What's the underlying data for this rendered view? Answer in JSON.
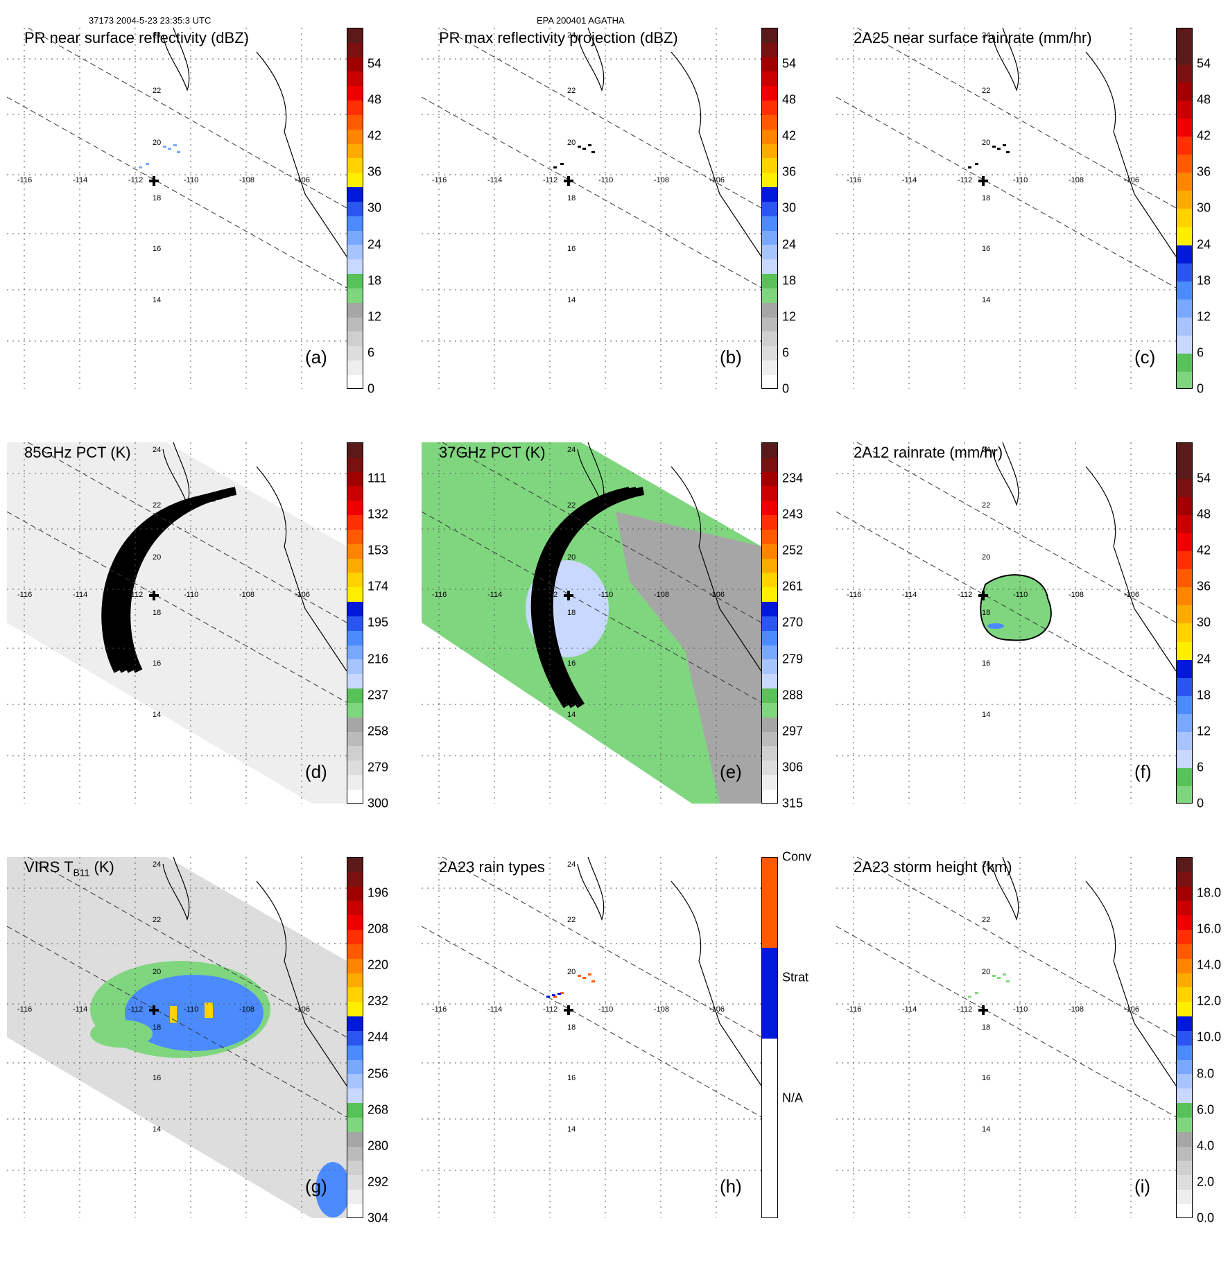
{
  "header": {
    "orbit_time": "37173 2004-5-23 23:35:3 UTC",
    "storm": "EPA 200401 AGATHA"
  },
  "lon_labels": [
    "-116",
    "-114",
    "-112",
    "-110",
    "-108",
    "-106"
  ],
  "lat_labels": [
    "24",
    "22",
    "20",
    "18",
    "16",
    "14"
  ],
  "panels": [
    {
      "id": "a",
      "title": "PR near surface reflectivity (dBZ)",
      "label": "(a)",
      "ticks": [
        "54",
        "48",
        "42",
        "36",
        "30",
        "24",
        "18",
        "12",
        "6",
        "0"
      ],
      "scale": "dbz"
    },
    {
      "id": "b",
      "title": "PR max reflectivity projection (dBZ)",
      "label": "(b)",
      "ticks": [
        "54",
        "48",
        "42",
        "36",
        "30",
        "24",
        "18",
        "12",
        "6",
        "0"
      ],
      "scale": "dbz"
    },
    {
      "id": "c",
      "title": "2A25 near surface rainrate (mm/hr)",
      "label": "(c)",
      "ticks": [
        "54",
        "48",
        "42",
        "36",
        "30",
        "24",
        "18",
        "12",
        "6",
        "0"
      ],
      "scale": "rain"
    },
    {
      "id": "d",
      "title": "85GHz PCT (K)",
      "label": "(d)",
      "ticks": [
        "111",
        "132",
        "153",
        "174",
        "195",
        "216",
        "237",
        "258",
        "279",
        "300"
      ],
      "scale": "dbz"
    },
    {
      "id": "e",
      "title": "37GHz PCT (K)",
      "label": "(e)",
      "ticks": [
        "234",
        "243",
        "252",
        "261",
        "270",
        "279",
        "288",
        "297",
        "306",
        "315"
      ],
      "scale": "dbz"
    },
    {
      "id": "f",
      "title": "2A12 rainrate (mm/hr)",
      "label": "(f)",
      "ticks": [
        "54",
        "48",
        "42",
        "36",
        "30",
        "24",
        "18",
        "12",
        "6",
        "0"
      ],
      "scale": "rain"
    },
    {
      "id": "g",
      "title": "VIRS T",
      "title_sub": "B11",
      "title_suffix": " (K)",
      "label": "(g)",
      "ticks": [
        "196",
        "208",
        "220",
        "232",
        "244",
        "256",
        "268",
        "280",
        "292",
        "304"
      ],
      "scale": "dbz"
    },
    {
      "id": "h",
      "title": "2A23 rain types",
      "label": "(h)",
      "ticks": [
        "Conv",
        "Strat",
        "N/A"
      ],
      "scale": "type"
    },
    {
      "id": "i",
      "title": "2A23 storm height (km)",
      "label": "(i)",
      "ticks": [
        "18.0",
        "16.0",
        "14.0",
        "12.0",
        "10.0",
        "8.0",
        "6.0",
        "4.0",
        "2.0",
        "0.0"
      ],
      "scale": "height"
    }
  ],
  "colors": {
    "dbz": [
      "#ffffff",
      "#eeeeee",
      "#dddddd",
      "#cfcfcf",
      "#bbbbbb",
      "#a6a6a6",
      "#7fd67f",
      "#59c159",
      "#c8d8ff",
      "#a8c4ff",
      "#78a8ff",
      "#4b8bff",
      "#2a55ee",
      "#0018d8",
      "#ffee00",
      "#ffd200",
      "#ffaa00",
      "#ff8400",
      "#ff5a00",
      "#ff3000",
      "#ee0000",
      "#c80000",
      "#a00000",
      "#7a1010",
      "#5a1a1a"
    ],
    "rain": [
      "#7fd67f",
      "#59c159",
      "#c8d8ff",
      "#a8c4ff",
      "#78a8ff",
      "#4b8bff",
      "#2a55ee",
      "#0018d8",
      "#ffee00",
      "#ffd200",
      "#ffaa00",
      "#ff8400",
      "#ff5a00",
      "#ff3000",
      "#ee0000",
      "#c80000",
      "#a00000",
      "#7a1010",
      "#5a1a1a",
      "#5a1a1a"
    ],
    "height": [
      "#ffffff",
      "#eeeeee",
      "#dddddd",
      "#cfcfcf",
      "#bbbbbb",
      "#a6a6a6",
      "#7fd67f",
      "#59c159",
      "#c8d8ff",
      "#a8c4ff",
      "#78a8ff",
      "#4b8bff",
      "#2a55ee",
      "#0018d8",
      "#ffee00",
      "#ffd200",
      "#ffaa00",
      "#ff8400",
      "#ff5a00",
      "#ff3000",
      "#ee0000",
      "#c80000",
      "#a00000",
      "#7a1010",
      "#5a1a1a"
    ],
    "type": [
      "#ffffff",
      "#ffffff",
      "#0018d8",
      "#ff5a00"
    ]
  }
}
